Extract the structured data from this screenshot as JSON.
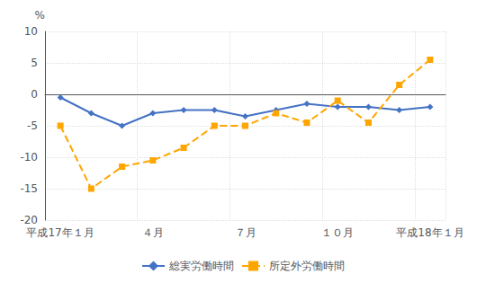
{
  "chart_data": {
    "type": "line",
    "categories": [
      "平成17年１月",
      null,
      null,
      "４月",
      null,
      null,
      "７月",
      null,
      null,
      "１０月",
      null,
      null,
      "平成18年１月"
    ],
    "series": [
      {
        "name": "総実労働時間",
        "color": "#4472C4",
        "marker": "diamond",
        "line_style": "solid",
        "values": [
          -0.5,
          -3.0,
          -5.0,
          -3.0,
          -2.5,
          -2.5,
          -3.5,
          -2.5,
          -1.5,
          -2.0,
          -2.0,
          -2.5,
          -2.0
        ]
      },
      {
        "name": "所定外労働時間",
        "color": "#FFA500",
        "marker": "square",
        "line_style": "dashed",
        "values": [
          -5.0,
          -15.0,
          -11.5,
          -10.5,
          -8.5,
          -5.0,
          -5.0,
          -3.0,
          -4.5,
          -1.0,
          -4.5,
          1.5,
          5.5
        ]
      }
    ],
    "ylabel": "%",
    "ylim": [
      -20,
      10
    ],
    "yticks": [
      -20,
      -15,
      -10,
      -5,
      0,
      5,
      10
    ],
    "grid": true,
    "legend": "bottom"
  }
}
